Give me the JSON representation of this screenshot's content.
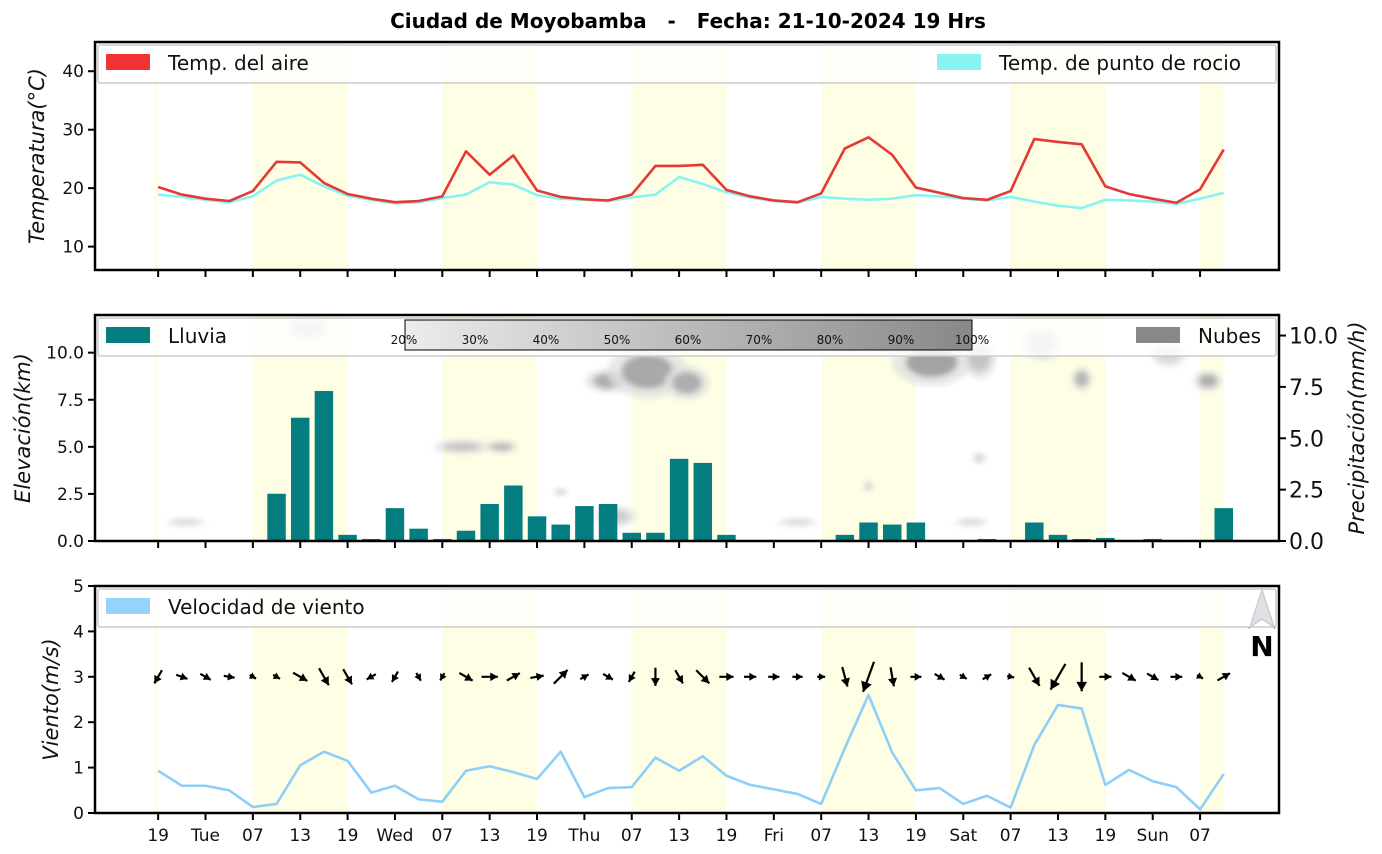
{
  "chart_data": {
    "title": "Ciudad de Moyobamba   -   Fecha: 21-10-2024 19 Hrs",
    "x_tick_labels": [
      "19",
      "Tue",
      "07",
      "13",
      "19",
      "Wed",
      "07",
      "13",
      "19",
      "Thu",
      "07",
      "13",
      "19",
      "Fri",
      "07",
      "13",
      "19",
      "Sat",
      "07",
      "13",
      "19",
      "Sun",
      "07"
    ],
    "x_tick_hours": [
      0,
      6,
      12,
      18,
      24,
      30,
      36,
      42,
      48,
      54,
      60,
      66,
      72,
      78,
      84,
      90,
      96,
      102,
      108,
      114,
      120,
      126,
      132
    ],
    "x_range_hours": [
      -8,
      142
    ],
    "daytime_shading_hours": [
      [
        -0.5,
        0
      ],
      [
        12,
        24
      ],
      [
        36,
        48
      ],
      [
        60,
        72
      ],
      [
        84,
        96
      ],
      [
        108,
        120
      ],
      [
        132,
        135
      ]
    ],
    "times_hours": [
      0,
      3,
      6,
      9,
      12,
      15,
      18,
      21,
      24,
      27,
      30,
      33,
      36,
      39,
      42,
      45,
      48,
      51,
      54,
      57,
      60,
      63,
      66,
      69,
      72,
      75,
      78,
      81,
      84,
      87,
      90,
      93,
      96,
      99,
      102,
      105,
      108,
      111,
      114,
      117,
      120,
      123,
      126,
      129,
      132,
      135
    ],
    "panels": [
      {
        "type": "line",
        "ylabel": "Temperatura(°C)",
        "ylim": [
          6,
          45
        ],
        "yticks": [
          10,
          20,
          30,
          40
        ],
        "legend": [
          {
            "label": "Temp. del aire",
            "color": "#ef3434",
            "position": "top-left"
          },
          {
            "label": "Temp. de punto de rocio",
            "color": "#88f4f2",
            "position": "top-right"
          }
        ],
        "series": [
          {
            "name": "Temp. del aire",
            "color": "#e53935",
            "values": [
              20.2,
              18.9,
              18.2,
              17.8,
              19.5,
              24.5,
              24.4,
              20.9,
              19.0,
              18.2,
              17.6,
              17.8,
              18.6,
              26.3,
              22.3,
              25.6,
              19.6,
              18.5,
              18.1,
              17.9,
              18.9,
              23.8,
              23.8,
              24.0,
              19.7,
              18.6,
              17.9,
              17.6,
              19.1,
              26.8,
              28.7,
              25.7,
              20.1,
              19.2,
              18.3,
              18.0,
              19.5,
              28.4,
              27.9,
              27.5,
              20.3,
              19.0,
              18.2,
              17.5,
              19.8,
              26.6
            ]
          },
          {
            "name": "Temp. de punto de rocio",
            "color": "#88f4f2",
            "values": [
              18.9,
              18.5,
              18.0,
              17.6,
              18.6,
              21.3,
              22.3,
              20.3,
              18.7,
              18.0,
              17.4,
              17.6,
              18.3,
              18.9,
              21.0,
              20.6,
              18.8,
              18.2,
              18.0,
              17.8,
              18.4,
              18.9,
              21.9,
              20.7,
              19.3,
              18.4,
              17.8,
              17.5,
              18.5,
              18.2,
              18.0,
              18.2,
              18.8,
              18.6,
              18.2,
              17.9,
              18.5,
              17.7,
              17.0,
              16.6,
              18.0,
              17.9,
              17.7,
              17.3,
              18.2,
              19.2
            ]
          }
        ]
      },
      {
        "type": "bar+contour",
        "ylabel": "Elevación(km)",
        "ylim": [
          0,
          12
        ],
        "yticks": [
          0.0,
          2.5,
          5.0,
          7.5,
          10.0
        ],
        "ylabel_right": "Precipitación(mm/h)",
        "ylim_right": [
          0,
          11
        ],
        "yticks_right": [
          0.0,
          2.5,
          5.0,
          7.5,
          10.0
        ],
        "legend": [
          {
            "label": "Lluvia",
            "color": "#037d80",
            "position": "top-left"
          },
          {
            "label": "Nubes",
            "color": "#888888",
            "position": "top-right"
          }
        ],
        "colorbar_labels": [
          "20%",
          "30%",
          "40%",
          "50%",
          "60%",
          "70%",
          "80%",
          "90%",
          "100%"
        ],
        "rain_series": {
          "name": "Lluvia",
          "color": "#037d80",
          "values": [
            0,
            0,
            0,
            0,
            0.05,
            2.3,
            6.0,
            7.3,
            0.3,
            0.1,
            1.6,
            0.6,
            0.1,
            0.5,
            1.8,
            2.7,
            1.2,
            0.8,
            1.7,
            1.8,
            0.4,
            0.4,
            4.0,
            3.8,
            0.3,
            0,
            0,
            0,
            0,
            0.3,
            0.9,
            0.8,
            0.9,
            0,
            0,
            0.1,
            0,
            0.9,
            0.3,
            0.1,
            0.15,
            0,
            0.1,
            0,
            0.05,
            1.6
          ]
        },
        "cloud_patches": [
          {
            "t": 3.5,
            "km": 1.0,
            "dt": 3.5,
            "dkm": 0.22,
            "level": 0.2
          },
          {
            "t": 19,
            "km": 11.3,
            "dt": 4,
            "dkm": 0.8,
            "level": 0.25
          },
          {
            "t": 42,
            "km": 11.2,
            "dt": 5,
            "dkm": 0.8,
            "level": 0.22
          },
          {
            "t": 38.5,
            "km": 5.0,
            "dt": 5,
            "dkm": 0.4,
            "level": 0.35
          },
          {
            "t": 43.5,
            "km": 5.0,
            "dt": 3,
            "dkm": 0.35,
            "level": 0.45
          },
          {
            "t": 51,
            "km": 2.6,
            "dt": 1.3,
            "dkm": 0.2,
            "level": 0.3
          },
          {
            "t": 57,
            "km": 8.5,
            "dt": 4,
            "dkm": 0.7,
            "level": 0.55
          },
          {
            "t": 62,
            "km": 9.0,
            "dt": 7,
            "dkm": 1.6,
            "level": 0.6
          },
          {
            "t": 67,
            "km": 8.4,
            "dt": 4,
            "dkm": 1.0,
            "level": 0.55
          },
          {
            "t": 58,
            "km": 1.3,
            "dt": 3.5,
            "dkm": 0.6,
            "level": 0.25
          },
          {
            "t": 81,
            "km": 1.0,
            "dt": 3.5,
            "dkm": 0.22,
            "level": 0.2
          },
          {
            "t": 91,
            "km": 11.0,
            "dt": 10,
            "dkm": 1.2,
            "level": 0.4
          },
          {
            "t": 98,
            "km": 9.5,
            "dt": 7,
            "dkm": 1.4,
            "level": 0.65
          },
          {
            "t": 104,
            "km": 9.7,
            "dt": 3,
            "dkm": 1.2,
            "level": 0.35
          },
          {
            "t": 90,
            "km": 2.9,
            "dt": 0.8,
            "dkm": 0.3,
            "level": 0.3
          },
          {
            "t": 104,
            "km": 4.4,
            "dt": 1.2,
            "dkm": 0.3,
            "level": 0.25
          },
          {
            "t": 103,
            "km": 1.0,
            "dt": 3,
            "dkm": 0.22,
            "level": 0.2
          },
          {
            "t": 112,
            "km": 10.5,
            "dt": 4,
            "dkm": 1.0,
            "level": 0.3
          },
          {
            "t": 117,
            "km": 8.6,
            "dt": 1.8,
            "dkm": 0.7,
            "level": 0.5
          },
          {
            "t": 133,
            "km": 8.5,
            "dt": 2.5,
            "dkm": 0.6,
            "level": 0.55
          },
          {
            "t": 128,
            "km": 9.9,
            "dt": 3,
            "dkm": 0.7,
            "level": 0.2
          }
        ]
      },
      {
        "type": "line+quiver",
        "ylabel": "Viento(m/s)",
        "ylim": [
          0,
          5
        ],
        "yticks": [
          0,
          1,
          2,
          3,
          4,
          5
        ],
        "legend": [
          {
            "label": "Velocidad de viento",
            "color": "#96d3f9",
            "position": "top-left"
          }
        ],
        "north_label": "N",
        "series": [
          {
            "name": "Velocidad de viento",
            "color": "#8ecff8",
            "values": [
              0.93,
              0.6,
              0.6,
              0.5,
              0.13,
              0.2,
              1.05,
              1.35,
              1.15,
              0.45,
              0.6,
              0.3,
              0.25,
              0.93,
              1.03,
              0.9,
              0.75,
              1.35,
              0.35,
              0.55,
              0.57,
              1.22,
              0.93,
              1.25,
              0.82,
              0.62,
              0.52,
              0.42,
              0.2,
              1.43,
              2.6,
              1.33,
              0.5,
              0.55,
              0.2,
              0.38,
              0.12,
              1.5,
              2.38,
              2.3,
              0.62,
              0.95,
              0.7,
              0.57,
              0.08,
              0.86
            ]
          }
        ],
        "wind_from_direction_deg": [
          30,
          290,
          300,
          280,
          300,
          300,
          300,
          330,
          330,
          60,
          30,
          330,
          30,
          300,
          270,
          240,
          260,
          225,
          240,
          300,
          30,
          0,
          330,
          315,
          270,
          270,
          270,
          270,
          270,
          345,
          20,
          350,
          270,
          300,
          300,
          240,
          280,
          330,
          30,
          0,
          270,
          300,
          300,
          270,
          300,
          240
        ]
      }
    ]
  }
}
